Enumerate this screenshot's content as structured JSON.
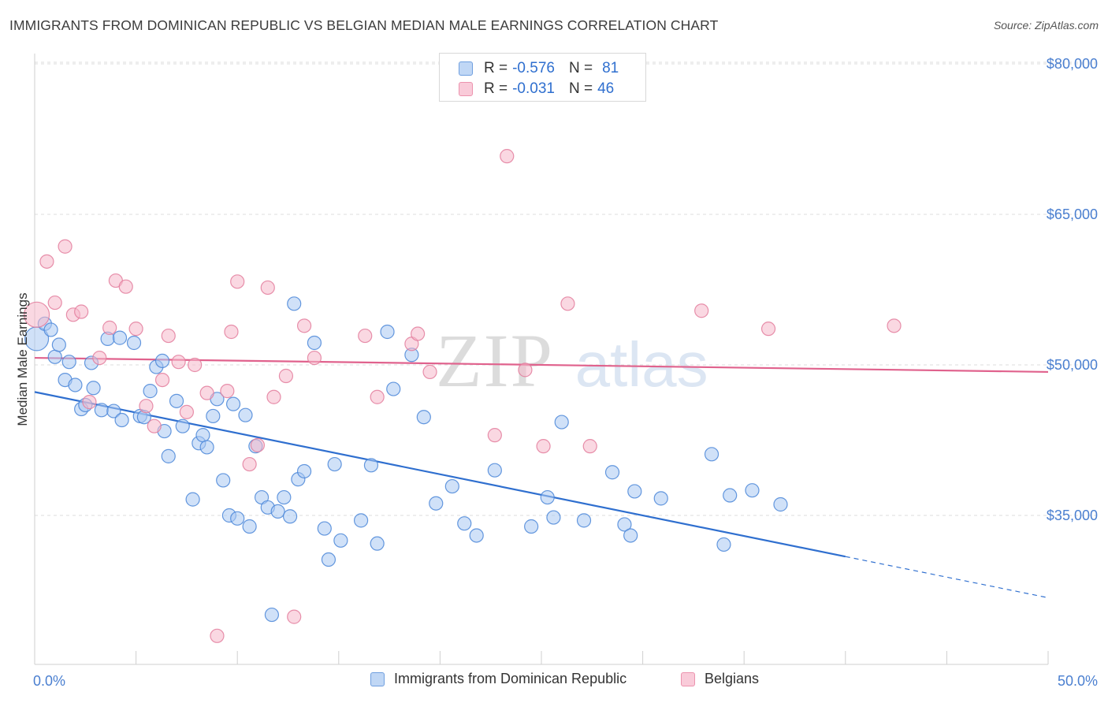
{
  "title": "IMMIGRANTS FROM DOMINICAN REPUBLIC VS BELGIAN MEDIAN MALE EARNINGS CORRELATION CHART",
  "source": "Source: ZipAtlas.com",
  "watermark": {
    "zip": "ZIP",
    "atlas": "atlas"
  },
  "legend": {
    "series": [
      {
        "r_label": "R =",
        "r_value": "-0.576",
        "n_label": "N =",
        "n_value": "81"
      },
      {
        "r_label": "R =",
        "r_value": "-0.031",
        "n_label": "N =",
        "n_value": "46"
      }
    ]
  },
  "colors": {
    "blue_fill": "#a9c8f2",
    "blue_stroke": "#4a86d8",
    "blue_line": "#2f6fcf",
    "pink_fill": "#f6b8ca",
    "pink_stroke": "#e37c9c",
    "pink_line": "#e0628d",
    "axis_text": "#4a7fd0",
    "grid": "#dddddd"
  },
  "chart_data": {
    "type": "scatter",
    "title": "IMMIGRANTS FROM DOMINICAN REPUBLIC VS BELGIAN MEDIAN MALE EARNINGS CORRELATION CHART",
    "xlabel": "",
    "ylabel": "Median Male Earnings",
    "xlim": [
      0,
      50
    ],
    "ylim": [
      20000,
      85000
    ],
    "x_tick_labels": [
      "0.0%",
      "50.0%"
    ],
    "y_ticks": [
      35000,
      50000,
      65000,
      80000
    ],
    "y_tick_labels": [
      "$35,000",
      "$50,000",
      "$65,000",
      "$80,000"
    ],
    "grid": true,
    "legend_position": "bottom",
    "series": [
      {
        "name": "Immigrants from Dominican Republic",
        "trend": {
          "x_start": 0,
          "y_start": 47300,
          "x_end": 40,
          "y_end": 30900,
          "dashed_to_x": 50,
          "dashed_to_y": 26800
        },
        "points": [
          [
            0.1,
            52600
          ],
          [
            0.5,
            54100
          ],
          [
            0.8,
            53500
          ],
          [
            1.0,
            50800
          ],
          [
            1.2,
            52000
          ],
          [
            1.5,
            48500
          ],
          [
            1.7,
            50300
          ],
          [
            2.0,
            48000
          ],
          [
            2.3,
            45600
          ],
          [
            2.5,
            46000
          ],
          [
            2.8,
            50200
          ],
          [
            2.9,
            47700
          ],
          [
            3.3,
            45500
          ],
          [
            3.6,
            52600
          ],
          [
            3.9,
            45400
          ],
          [
            4.2,
            52700
          ],
          [
            4.3,
            44500
          ],
          [
            4.9,
            52200
          ],
          [
            5.2,
            44900
          ],
          [
            5.4,
            44800
          ],
          [
            5.7,
            47400
          ],
          [
            6.0,
            49800
          ],
          [
            6.3,
            50400
          ],
          [
            6.4,
            43400
          ],
          [
            6.6,
            40900
          ],
          [
            7.0,
            46400
          ],
          [
            7.3,
            43900
          ],
          [
            7.8,
            36600
          ],
          [
            8.1,
            42200
          ],
          [
            8.3,
            43000
          ],
          [
            8.5,
            41800
          ],
          [
            8.8,
            44900
          ],
          [
            9.0,
            46600
          ],
          [
            9.3,
            38500
          ],
          [
            9.6,
            35000
          ],
          [
            9.8,
            46100
          ],
          [
            10.0,
            34700
          ],
          [
            10.4,
            45000
          ],
          [
            10.6,
            33900
          ],
          [
            10.9,
            41900
          ],
          [
            11.2,
            36800
          ],
          [
            11.5,
            35800
          ],
          [
            11.7,
            25100
          ],
          [
            12.0,
            35400
          ],
          [
            12.3,
            36800
          ],
          [
            12.6,
            34900
          ],
          [
            12.8,
            56100
          ],
          [
            13.0,
            38600
          ],
          [
            13.3,
            39400
          ],
          [
            13.8,
            52200
          ],
          [
            14.3,
            33700
          ],
          [
            14.5,
            30600
          ],
          [
            14.8,
            40100
          ],
          [
            15.1,
            32500
          ],
          [
            16.1,
            34500
          ],
          [
            16.6,
            40000
          ],
          [
            16.9,
            32200
          ],
          [
            17.4,
            53300
          ],
          [
            17.7,
            47600
          ],
          [
            18.6,
            51000
          ],
          [
            19.2,
            44800
          ],
          [
            19.8,
            36200
          ],
          [
            20.6,
            37900
          ],
          [
            21.2,
            34200
          ],
          [
            21.8,
            33000
          ],
          [
            22.7,
            39500
          ],
          [
            24.5,
            33900
          ],
          [
            25.3,
            36800
          ],
          [
            25.6,
            34800
          ],
          [
            26.0,
            44300
          ],
          [
            27.1,
            34500
          ],
          [
            28.5,
            39300
          ],
          [
            29.1,
            34100
          ],
          [
            29.4,
            33000
          ],
          [
            29.6,
            37400
          ],
          [
            30.9,
            36700
          ],
          [
            33.4,
            41100
          ],
          [
            34.0,
            32100
          ],
          [
            34.3,
            37000
          ],
          [
            35.4,
            37500
          ],
          [
            36.8,
            36100
          ]
        ]
      },
      {
        "name": "Belgians",
        "trend": {
          "x_start": 0,
          "y_start": 50700,
          "x_end": 50,
          "y_end": 49300
        },
        "points": [
          [
            0.1,
            55000
          ],
          [
            0.6,
            60300
          ],
          [
            1.0,
            56200
          ],
          [
            1.5,
            61800
          ],
          [
            1.9,
            55000
          ],
          [
            2.3,
            55300
          ],
          [
            2.7,
            46300
          ],
          [
            3.2,
            50700
          ],
          [
            3.7,
            53700
          ],
          [
            4.0,
            58400
          ],
          [
            4.5,
            57800
          ],
          [
            5.0,
            53600
          ],
          [
            5.5,
            45900
          ],
          [
            5.9,
            43900
          ],
          [
            6.3,
            48500
          ],
          [
            6.6,
            52900
          ],
          [
            7.1,
            50300
          ],
          [
            7.5,
            45300
          ],
          [
            7.9,
            50000
          ],
          [
            8.5,
            47200
          ],
          [
            9.0,
            23000
          ],
          [
            9.5,
            47400
          ],
          [
            9.7,
            53300
          ],
          [
            10.0,
            58300
          ],
          [
            10.6,
            40100
          ],
          [
            11.0,
            42000
          ],
          [
            11.5,
            57700
          ],
          [
            11.8,
            46800
          ],
          [
            12.4,
            48900
          ],
          [
            12.8,
            24900
          ],
          [
            13.3,
            53900
          ],
          [
            13.8,
            50700
          ],
          [
            16.3,
            52900
          ],
          [
            16.9,
            46800
          ],
          [
            18.6,
            52100
          ],
          [
            18.9,
            53100
          ],
          [
            19.5,
            49300
          ],
          [
            22.7,
            43000
          ],
          [
            23.3,
            70800
          ],
          [
            24.2,
            49500
          ],
          [
            25.1,
            41900
          ],
          [
            26.3,
            56100
          ],
          [
            27.4,
            41900
          ],
          [
            32.9,
            55400
          ],
          [
            36.2,
            53600
          ],
          [
            42.4,
            53900
          ]
        ]
      }
    ]
  },
  "bottom_legend": {
    "items": [
      {
        "label": "Immigrants from Dominican Republic"
      },
      {
        "label": "Belgians"
      }
    ]
  }
}
